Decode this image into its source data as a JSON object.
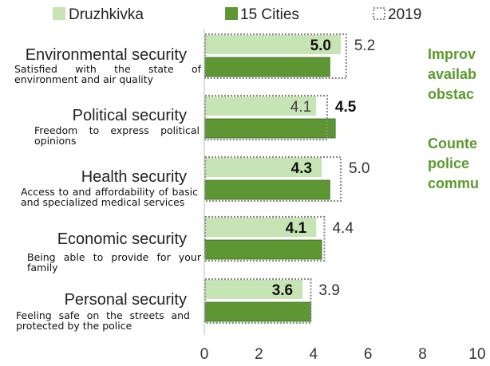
{
  "chart_data": {
    "type": "bar",
    "orientation": "horizontal",
    "legend_position": "top",
    "xlim": [
      0,
      10
    ],
    "xticks": [
      "0",
      "2",
      "4",
      "6",
      "8",
      "10"
    ],
    "categories": [
      {
        "name": "Environmental security",
        "description": "Satisfied with the state of environment and air quality"
      },
      {
        "name": "Political security",
        "description": "Freedom to express political opinions"
      },
      {
        "name": "Health security",
        "description": "Access to and affordability of basic and specialized medical services"
      },
      {
        "name": "Economic security",
        "description": "Being able to provide for your family"
      },
      {
        "name": "Personal security",
        "description": "Feeling safe on the streets and protected by the police"
      }
    ],
    "series": [
      {
        "name": "Druzhkivka",
        "color": "#c6e4b4",
        "values": [
          5.0,
          4.1,
          4.3,
          4.1,
          3.6
        ],
        "labels": [
          "5.0",
          "4.1",
          "4.3",
          "4.1",
          "3.6"
        ]
      },
      {
        "name": "15 Cities",
        "color": "#5d9632",
        "values": [
          4.6,
          4.8,
          4.6,
          4.3,
          3.9
        ]
      },
      {
        "name": "2019",
        "style": "dotted-outline",
        "values": [
          5.2,
          4.5,
          5.0,
          4.4,
          3.9
        ],
        "labels": [
          "5.2",
          "4.5",
          "5.0",
          "4.4",
          "3.9"
        ]
      }
    ]
  },
  "side_notes": [
    "Improv\navailab\nobstac",
    "Counte\npolice\ncommu"
  ]
}
